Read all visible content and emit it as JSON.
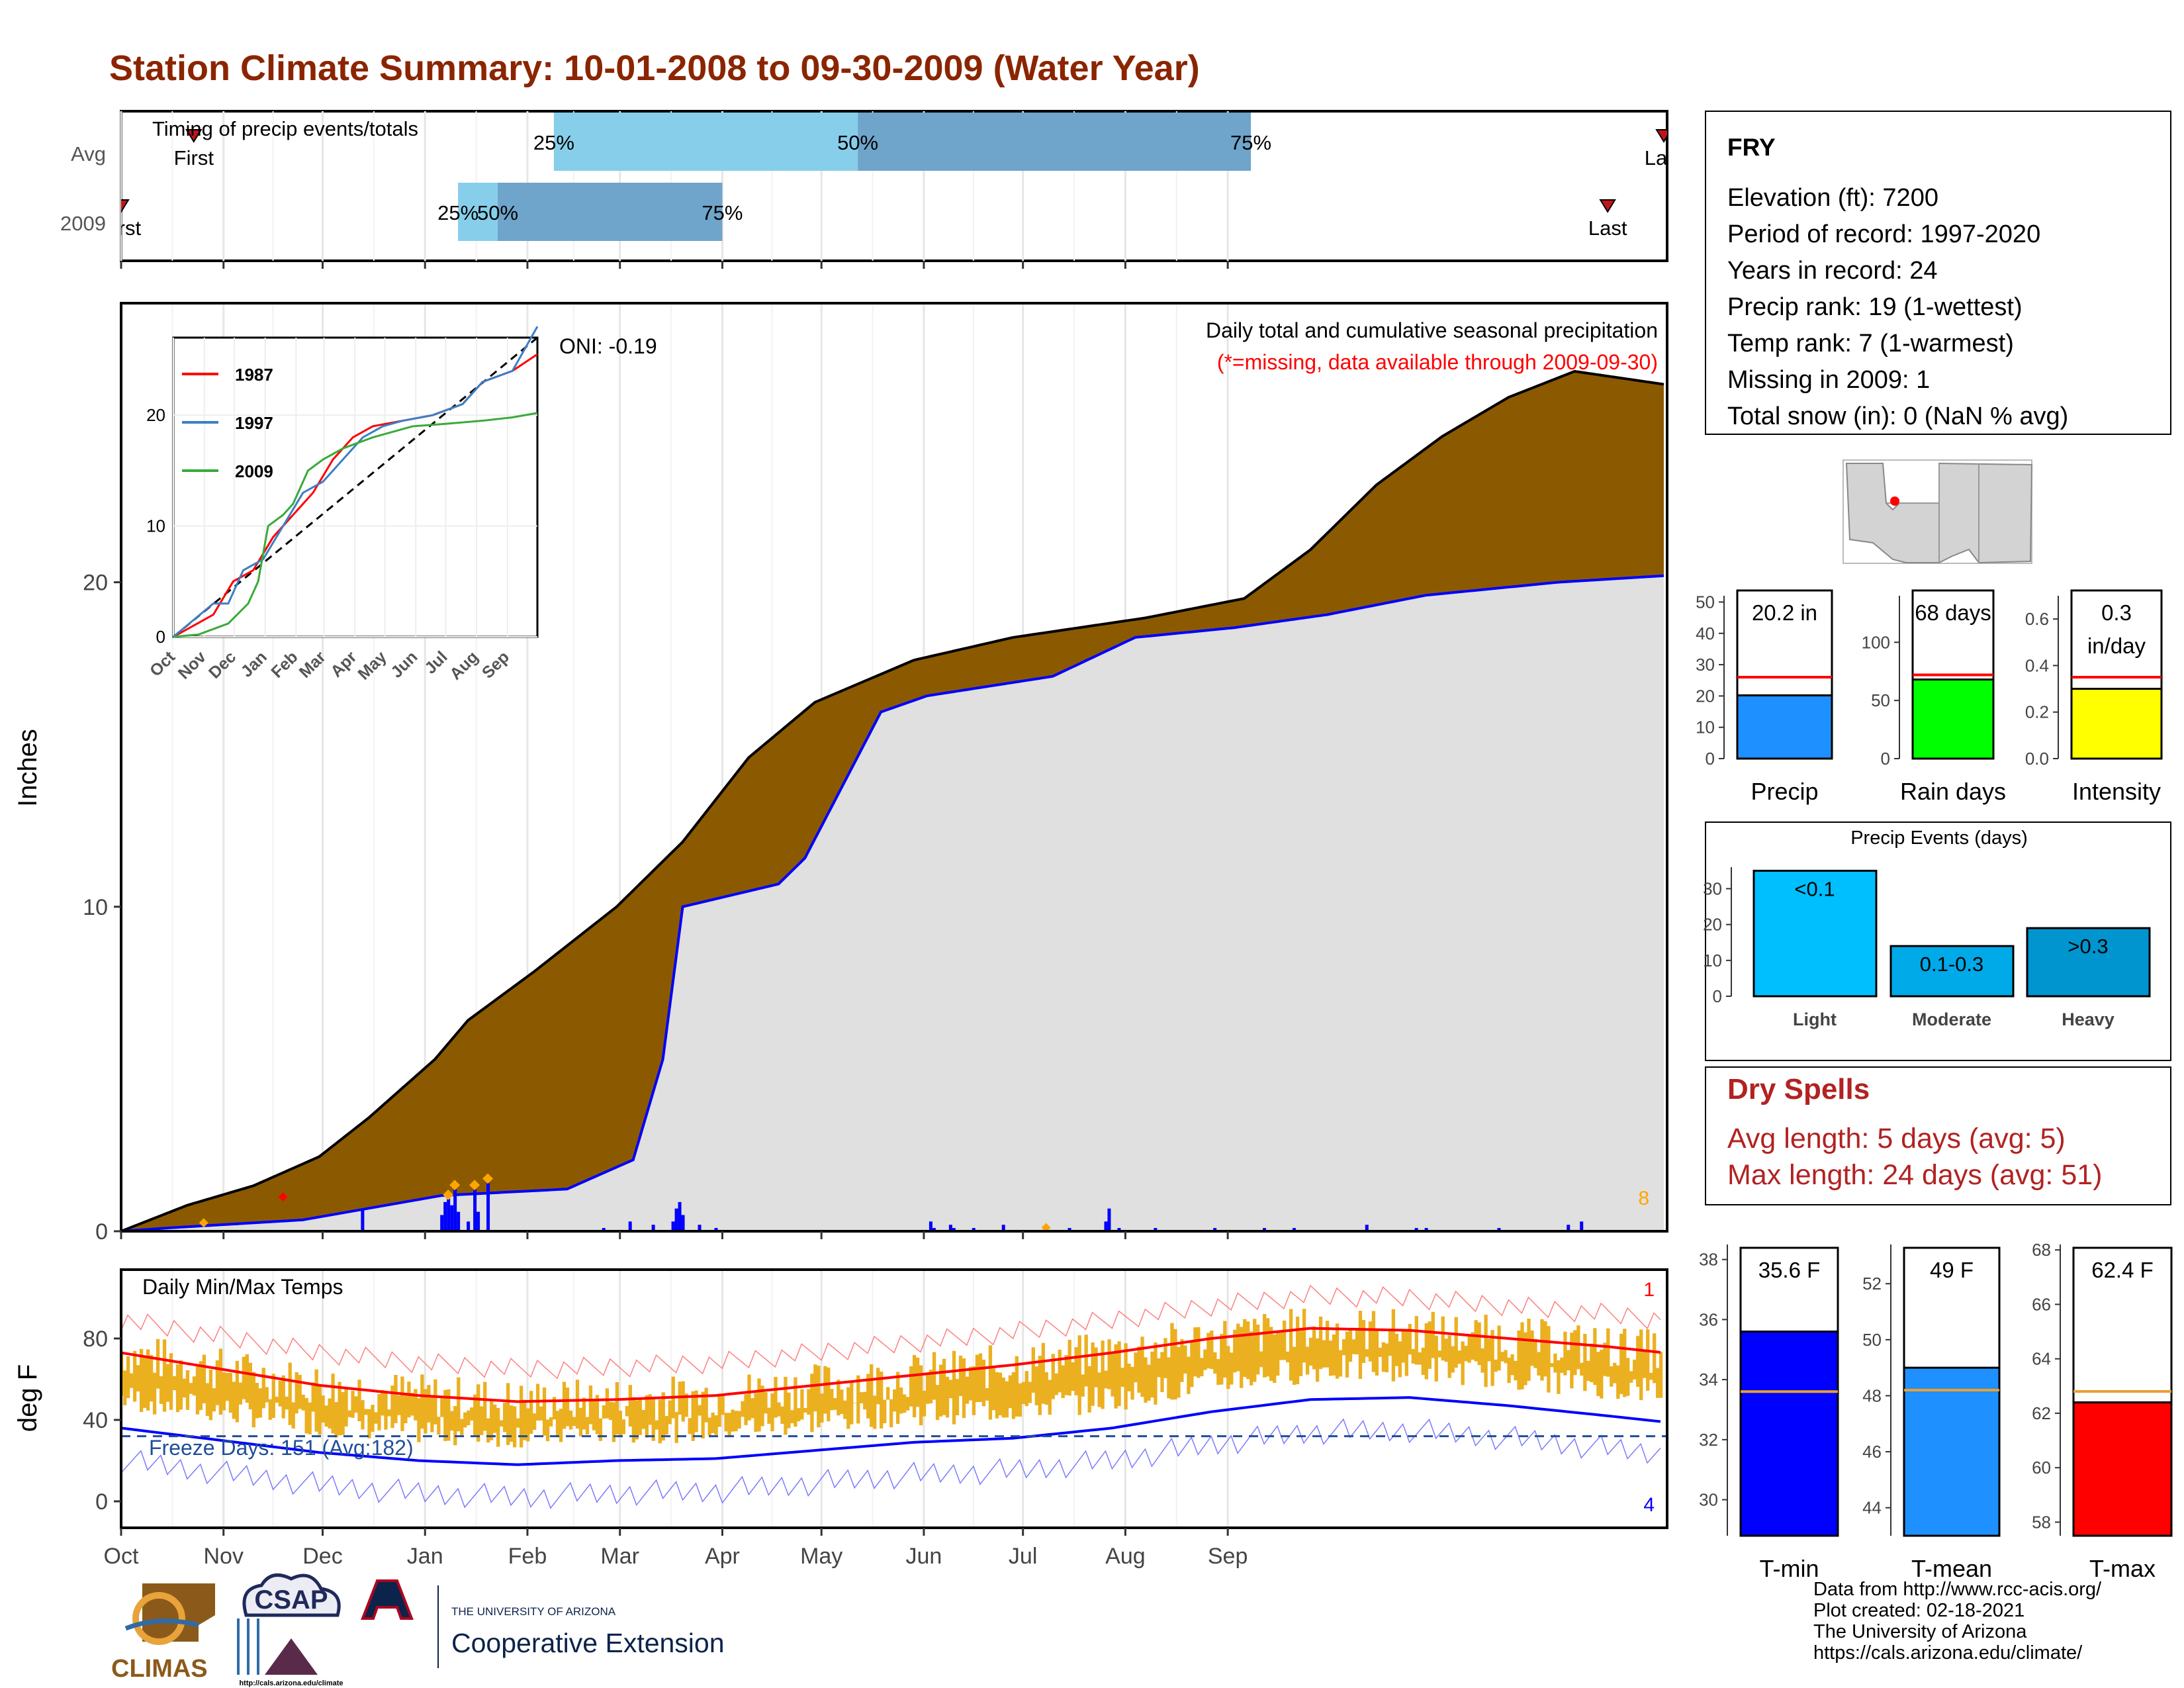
{
  "title": "Station Climate Summary: 10-01-2008 to 09-30-2009 (Water Year)",
  "colors": {
    "title": "#8B2500",
    "brown": "#8B5A00",
    "green": "#008000",
    "grey": "#E0E0E0",
    "blue": "#0000FF",
    "orange": "#FFA500",
    "gold": "#EBB020",
    "red": "#FF0000",
    "lightblue": "#87CEEB",
    "steelblue": "#6FA4CB"
  },
  "timing": {
    "title": "Timing of precip events/totals",
    "rows": [
      {
        "label": "Avg",
        "first": "First",
        "last": "Last",
        "p25": "25%",
        "p50": "50%",
        "p75": "75%"
      },
      {
        "label": "2009",
        "first": "First",
        "last": "Last",
        "p25": "25%",
        "p50": "50%",
        "p75": "75%"
      }
    ]
  },
  "station": {
    "name": "FRY",
    "lines": [
      "Elevation (ft): 7200",
      "Period of record: 1997-2020",
      "Years in record: 24",
      "Precip rank: 19 (1-wettest)",
      "Temp rank: 7 (1-warmest)",
      "Missing in 2009: 1",
      "Total snow (in): 0 (NaN % avg)"
    ]
  },
  "main_plot": {
    "ylabel": "Inches",
    "title": "Daily total and cumulative seasonal precipitation",
    "subtitle": "(*=missing, data available through 2009-09-30)",
    "oni": "ONI: -0.19",
    "corner_count": "8",
    "yticks": [
      "0",
      "10",
      "20"
    ]
  },
  "inset": {
    "series": [
      "1987",
      "1997",
      "2009"
    ],
    "yticks": [
      "0",
      "10",
      "20"
    ],
    "months": [
      "Oct",
      "Nov",
      "Dec",
      "Jan",
      "Feb",
      "Mar",
      "Apr",
      "May",
      "Jun",
      "Jul",
      "Aug",
      "Sep"
    ]
  },
  "temp_plot": {
    "ylabel": "deg F",
    "title": "Daily Min/Max Temps",
    "freeze": "Freeze Days: 151 (Avg:182)",
    "top_count": "1",
    "bottom_count": "4",
    "yticks": [
      "0",
      "40",
      "80"
    ]
  },
  "months": [
    "Oct",
    "Nov",
    "Dec",
    "Jan",
    "Feb",
    "Mar",
    "Apr",
    "May",
    "Jun",
    "Jul",
    "Aug",
    "Sep"
  ],
  "mini_bars": [
    {
      "label": "Precip",
      "value_text": "20.2 in",
      "ticks": [
        "0",
        "10",
        "20",
        "30",
        "40",
        "50"
      ]
    },
    {
      "label": "Rain days",
      "value_text": "68 days",
      "ticks": [
        "0",
        "50",
        "100"
      ]
    },
    {
      "label": "Intensity",
      "value_text": "0.3",
      "value_text2": "in/day",
      "ticks": [
        "0.0",
        "0.2",
        "0.4",
        "0.6"
      ]
    }
  ],
  "events": {
    "title": "Precip Events (days)",
    "categories": [
      "Light",
      "Moderate",
      "Heavy"
    ],
    "labels": [
      "<0.1",
      "0.1-0.3",
      ">0.3"
    ],
    "ticks": [
      "0",
      "10",
      "20",
      "30"
    ]
  },
  "dry_spells": {
    "title": "Dry Spells",
    "avg": "Avg length: 5 days (avg: 5)",
    "max": "Max length: 24 days (avg: 51)"
  },
  "temp_bars": [
    {
      "label": "T-min",
      "value_text": "35.6 F",
      "ticks": [
        "30",
        "32",
        "34",
        "36",
        "38"
      ]
    },
    {
      "label": "T-mean",
      "value_text": "49 F",
      "ticks": [
        "44",
        "46",
        "48",
        "50",
        "52"
      ]
    },
    {
      "label": "T-max",
      "value_text": "62.4 F",
      "ticks": [
        "58",
        "60",
        "62",
        "64",
        "66",
        "68"
      ]
    }
  ],
  "logos": {
    "climas": "CLIMAS",
    "csap": "CSAP",
    "csap_url": "http://cals.arizona.edu/climate",
    "ua_small": "THE UNIVERSITY OF ARIZONA",
    "ua_big": "Cooperative Extension"
  },
  "footer": [
    "Data from http://www.rcc-acis.org/",
    "Plot created: 02-18-2021",
    "The University of Arizona",
    "https://cals.arizona.edu/climate/"
  ],
  "chart_data": [
    {
      "type": "bar",
      "title": "Timing of precip events/totals",
      "categories": [
        "Avg",
        "2009"
      ],
      "x_units": "day of water year",
      "series": [
        {
          "name": "Avg",
          "first": 22,
          "p25": 131,
          "p50": 223,
          "p75": 342,
          "last": 467
        },
        {
          "name": "2009",
          "first": 0,
          "p25": 102,
          "p50": 114,
          "p75": 182,
          "last": 450
        }
      ]
    },
    {
      "type": "area",
      "title": "Daily total and cumulative seasonal precipitation",
      "ylabel": "Inches",
      "ylim": [
        0,
        28.6
      ],
      "cumulative_avg": [
        [
          0,
          0
        ],
        [
          20,
          0.8
        ],
        [
          40,
          1.4
        ],
        [
          60,
          2.3
        ],
        [
          75,
          3.5
        ],
        [
          95,
          5.3
        ],
        [
          105,
          6.5
        ],
        [
          125,
          8.0
        ],
        [
          150,
          10.0
        ],
        [
          170,
          12.0
        ],
        [
          190,
          14.6
        ],
        [
          210,
          16.3
        ],
        [
          240,
          17.6
        ],
        [
          270,
          18.3
        ],
        [
          290,
          18.6
        ],
        [
          310,
          18.9
        ],
        [
          340,
          19.5
        ],
        [
          360,
          21.0
        ],
        [
          380,
          23.0
        ],
        [
          400,
          24.5
        ],
        [
          420,
          25.7
        ],
        [
          440,
          26.5
        ],
        [
          467,
          26.1
        ]
      ],
      "cumulative_2009": [
        [
          0,
          0
        ],
        [
          14,
          0.1
        ],
        [
          55,
          0.35
        ],
        [
          97,
          1.1
        ],
        [
          135,
          1.3
        ],
        [
          155,
          2.2
        ],
        [
          164,
          5.3
        ],
        [
          170,
          10.0
        ],
        [
          199,
          10.7
        ],
        [
          207,
          11.5
        ],
        [
          230,
          16.0
        ],
        [
          244,
          16.5
        ],
        [
          282,
          17.1
        ],
        [
          307,
          18.3
        ],
        [
          337,
          18.6
        ],
        [
          365,
          19.0
        ],
        [
          395,
          19.6
        ],
        [
          435,
          20.0
        ],
        [
          467,
          20.2
        ]
      ],
      "daily_bars": [
        [
          73,
          0.7
        ],
        [
          97,
          0.5
        ],
        [
          98,
          0.9
        ],
        [
          99,
          1.0
        ],
        [
          100,
          0.8
        ],
        [
          101,
          1.3
        ],
        [
          102,
          0.6
        ],
        [
          105,
          0.3
        ],
        [
          107,
          1.3
        ],
        [
          108,
          0.6
        ],
        [
          111,
          1.5
        ],
        [
          146,
          0.1
        ],
        [
          154,
          0.3
        ],
        [
          161,
          0.2
        ],
        [
          167,
          0.3
        ],
        [
          168,
          0.7
        ],
        [
          169,
          0.9
        ],
        [
          170,
          0.5
        ],
        [
          175,
          0.2
        ],
        [
          180,
          0.1
        ],
        [
          246,
          0.1
        ],
        [
          245,
          0.3
        ],
        [
          251,
          0.2
        ],
        [
          252,
          0.1
        ],
        [
          258,
          0.1
        ],
        [
          267,
          0.2
        ],
        [
          287,
          0.1
        ],
        [
          298,
          0.3
        ],
        [
          299,
          0.7
        ],
        [
          302,
          0.1
        ],
        [
          313,
          0.1
        ],
        [
          331,
          0.1
        ],
        [
          346,
          0.1
        ],
        [
          355,
          0.1
        ],
        [
          377,
          0.2
        ],
        [
          392,
          0.1
        ],
        [
          395,
          0.1
        ],
        [
          417,
          0.1
        ],
        [
          438,
          0.2
        ],
        [
          442,
          0.3
        ]
      ]
    },
    {
      "type": "line",
      "title": "Daily Min/Max Temps",
      "ylabel": "deg F",
      "avg_max": [
        [
          0,
          73
        ],
        [
          30,
          65
        ],
        [
          60,
          57
        ],
        [
          90,
          52
        ],
        [
          120,
          49
        ],
        [
          150,
          50
        ],
        [
          180,
          52
        ],
        [
          210,
          57
        ],
        [
          240,
          62
        ],
        [
          270,
          67
        ],
        [
          300,
          73
        ],
        [
          330,
          80
        ],
        [
          360,
          85
        ],
        [
          390,
          84
        ],
        [
          420,
          80
        ],
        [
          450,
          76
        ],
        [
          467,
          73
        ]
      ],
      "avg_min": [
        [
          0,
          36
        ],
        [
          30,
          30
        ],
        [
          60,
          24
        ],
        [
          90,
          20
        ],
        [
          120,
          18
        ],
        [
          150,
          20
        ],
        [
          180,
          21
        ],
        [
          210,
          25
        ],
        [
          240,
          29
        ],
        [
          270,
          31
        ],
        [
          300,
          36
        ],
        [
          330,
          44
        ],
        [
          360,
          50
        ],
        [
          390,
          51
        ],
        [
          420,
          47
        ],
        [
          450,
          42
        ],
        [
          467,
          39
        ]
      ],
      "freeze_line": 32
    },
    {
      "type": "bar",
      "title": "Precip",
      "categories": [
        "Precip"
      ],
      "values": [
        20.2
      ],
      "average": 26,
      "ylim": [
        0,
        52
      ]
    },
    {
      "type": "bar",
      "title": "Rain days",
      "categories": [
        "Rain days"
      ],
      "values": [
        68
      ],
      "average": 72,
      "ylim": [
        0,
        140
      ]
    },
    {
      "type": "bar",
      "title": "Intensity",
      "categories": [
        "Intensity"
      ],
      "values": [
        0.3
      ],
      "average": 0.35,
      "ylim": [
        0,
        0.7
      ]
    },
    {
      "type": "bar",
      "title": "Precip Events (days)",
      "categories": [
        "Light",
        "Moderate",
        "Heavy"
      ],
      "values": [
        35,
        14,
        19
      ],
      "ylim": [
        0,
        36
      ]
    },
    {
      "type": "bar",
      "title": "T-min",
      "categories": [
        "T-min"
      ],
      "values": [
        35.6
      ],
      "average": 33.6,
      "ylim": [
        28.8,
        38.5
      ]
    },
    {
      "type": "bar",
      "title": "T-mean",
      "categories": [
        "T-mean"
      ],
      "values": [
        49
      ],
      "average": 48.2,
      "ylim": [
        43,
        53.4
      ]
    },
    {
      "type": "bar",
      "title": "T-max",
      "categories": [
        "T-max"
      ],
      "values": [
        62.4
      ],
      "average": 62.8,
      "ylim": [
        57.5,
        68.2
      ]
    }
  ]
}
